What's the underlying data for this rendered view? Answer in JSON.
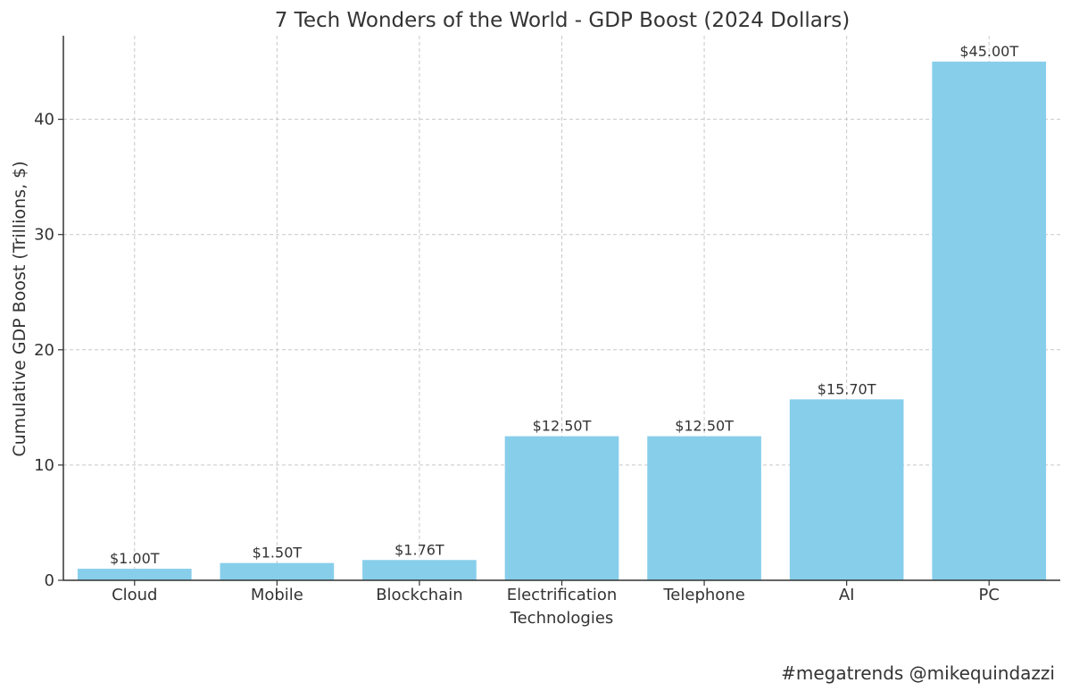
{
  "chart_data": {
    "type": "bar",
    "title": "7 Tech Wonders of the World - GDP Boost (2024 Dollars)",
    "xlabel": "",
    "ylabel": "Cumulative GDP Boost (Trillions, $)",
    "categories": [
      [
        "Cloud"
      ],
      [
        "Mobile"
      ],
      [
        "Blockchain"
      ],
      [
        "Electrification",
        "Technologies"
      ],
      [
        "Telephone"
      ],
      [
        "AI"
      ],
      [
        "PC"
      ]
    ],
    "values": [
      1.0,
      1.5,
      1.76,
      12.5,
      12.5,
      15.7,
      45.0
    ],
    "data_labels": [
      "$1.00T",
      "$1.50T",
      "$1.76T",
      "$12.50T",
      "$12.50T",
      "$15.70T",
      "$45.00T"
    ],
    "yticks": [
      0,
      10,
      20,
      30,
      40
    ],
    "ylim": [
      0,
      47.25
    ],
    "grid": true,
    "bar_color": "#87CEEB",
    "grid_color": "#c8c8c8"
  },
  "footer": {
    "hashtag_credit": "#megatrends @mikequindazzi"
  }
}
